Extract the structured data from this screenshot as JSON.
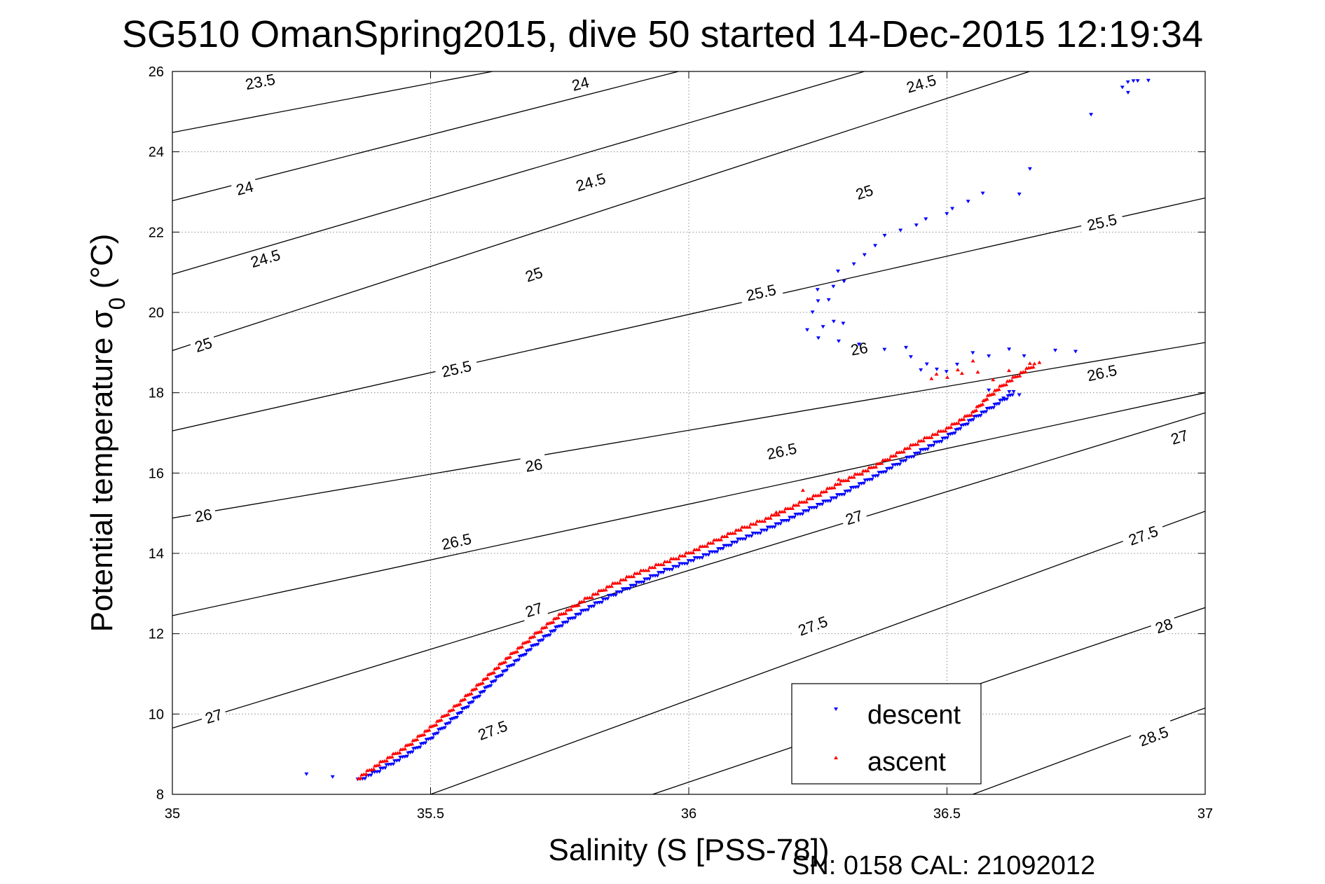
{
  "title": "SG510 OmanSpring2015, dive 50 started 14-Dec-2015 12:19:34",
  "footer": "SN: 0158  CAL: 21092012",
  "colors": {
    "descent": "#0000ff",
    "ascent": "#ff0000",
    "contour": "#000000",
    "grid": "#8c8c8c"
  },
  "chart_data": {
    "type": "scatter",
    "xlabel": "Salinity (S [PSS-78])",
    "ylabel_prefix": "Potential temperature σ",
    "ylabel_subscript": "0",
    "ylabel_suffix": " (°C)",
    "xlim": [
      35,
      37
    ],
    "ylim": [
      8,
      26
    ],
    "xticks": [
      35,
      35.5,
      36,
      36.5,
      37
    ],
    "xtick_labels": [
      "35",
      "35.5",
      "36",
      "36.5",
      "37"
    ],
    "yticks": [
      8,
      10,
      12,
      14,
      16,
      18,
      20,
      22,
      24,
      26
    ],
    "ytick_labels": [
      "8",
      "10",
      "12",
      "14",
      "16",
      "18",
      "20",
      "22",
      "24",
      "26"
    ],
    "grid": true,
    "legend_position": "bottom-right",
    "contours": [
      {
        "level": "23.5",
        "line": [
          [
            35,
            24.48
          ],
          [
            35.62,
            26
          ]
        ],
        "labels": [
          [
            35.17,
            25.75
          ]
        ]
      },
      {
        "level": "24",
        "line": [
          [
            35,
            22.78
          ],
          [
            35.98,
            26
          ]
        ],
        "labels": [
          [
            35.14,
            23.1
          ],
          [
            35.79,
            25.7
          ]
        ]
      },
      {
        "level": "24.5",
        "line": [
          [
            35,
            20.95
          ],
          [
            36.34,
            26
          ]
        ],
        "labels": [
          [
            35.18,
            21.35
          ],
          [
            35.81,
            23.25
          ],
          [
            36.45,
            25.7
          ]
        ]
      },
      {
        "level": "25",
        "line": [
          [
            35,
            19.05
          ],
          [
            36.66,
            26
          ]
        ],
        "labels": [
          [
            35.06,
            19.2
          ],
          [
            35.7,
            20.95
          ],
          [
            36.34,
            23.0
          ]
        ]
      },
      {
        "level": "25.5",
        "line": [
          [
            35,
            17.05
          ],
          [
            37,
            22.85
          ]
        ],
        "labels": [
          [
            35.55,
            18.6
          ],
          [
            36.14,
            20.5
          ],
          [
            36.8,
            22.25
          ]
        ]
      },
      {
        "level": "26",
        "line": [
          [
            35,
            14.88
          ],
          [
            37,
            19.25
          ]
        ],
        "labels": [
          [
            35.06,
            14.95
          ],
          [
            35.7,
            16.2
          ],
          [
            36.33,
            19.1
          ]
        ]
      },
      {
        "level": "26.5",
        "line": [
          [
            35,
            12.45
          ],
          [
            37,
            18.0
          ]
        ],
        "labels": [
          [
            35.55,
            14.3
          ],
          [
            36.18,
            16.55
          ],
          [
            36.8,
            18.5
          ]
        ]
      },
      {
        "level": "27",
        "line": [
          [
            35,
            9.65
          ],
          [
            37,
            17.5
          ]
        ],
        "labels": [
          [
            35.08,
            9.95
          ],
          [
            35.7,
            12.6
          ],
          [
            36.32,
            14.9
          ],
          [
            36.95,
            16.9
          ]
        ]
      },
      {
        "level": "27.5",
        "line": [
          [
            35.5,
            8
          ],
          [
            37,
            15.05
          ]
        ],
        "labels": [
          [
            35.62,
            9.6
          ],
          [
            36.24,
            12.2
          ],
          [
            36.88,
            14.45
          ]
        ]
      },
      {
        "level": "28",
        "line": [
          [
            35.93,
            8
          ],
          [
            37,
            12.65
          ]
        ],
        "labels": [
          [
            36.92,
            12.2
          ]
        ]
      },
      {
        "level": "28.5",
        "line": [
          [
            36.55,
            8
          ],
          [
            37,
            10.15
          ]
        ],
        "labels": [
          [
            36.9,
            9.45
          ]
        ]
      }
    ],
    "series": [
      {
        "name": "descent",
        "marker": "triangle-down",
        "path": [
          [
            35.36,
            8.35
          ],
          [
            35.4,
            8.6
          ],
          [
            35.45,
            8.95
          ],
          [
            35.5,
            9.4
          ],
          [
            35.55,
            9.95
          ],
          [
            35.6,
            10.55
          ],
          [
            35.65,
            11.15
          ],
          [
            35.7,
            11.7
          ],
          [
            35.75,
            12.2
          ],
          [
            35.8,
            12.6
          ],
          [
            35.85,
            12.95
          ],
          [
            35.9,
            13.25
          ],
          [
            35.95,
            13.55
          ],
          [
            36.0,
            13.8
          ],
          [
            36.05,
            14.05
          ],
          [
            36.1,
            14.35
          ],
          [
            36.15,
            14.6
          ],
          [
            36.2,
            14.9
          ],
          [
            36.25,
            15.2
          ],
          [
            36.3,
            15.5
          ],
          [
            36.35,
            15.85
          ],
          [
            36.4,
            16.2
          ],
          [
            36.45,
            16.55
          ],
          [
            36.5,
            16.9
          ],
          [
            36.55,
            17.35
          ],
          [
            36.6,
            17.75
          ],
          [
            36.63,
            18.0
          ]
        ],
        "points": [
          [
            35.26,
            8.5
          ],
          [
            35.31,
            8.45
          ],
          [
            36.58,
            18.1
          ],
          [
            36.61,
            17.85
          ],
          [
            36.64,
            17.95
          ],
          [
            36.62,
            18.05
          ],
          [
            36.5,
            18.5
          ],
          [
            36.52,
            18.7
          ],
          [
            36.48,
            18.6
          ],
          [
            36.46,
            18.75
          ],
          [
            36.45,
            18.55
          ],
          [
            36.43,
            18.9
          ],
          [
            36.42,
            19.15
          ],
          [
            36.38,
            19.05
          ],
          [
            36.33,
            19.2
          ],
          [
            36.29,
            19.3
          ],
          [
            36.25,
            19.4
          ],
          [
            36.23,
            19.55
          ],
          [
            36.26,
            19.65
          ],
          [
            36.28,
            19.8
          ],
          [
            36.3,
            19.7
          ],
          [
            36.24,
            20.0
          ],
          [
            36.25,
            20.3
          ],
          [
            36.27,
            20.35
          ],
          [
            36.25,
            20.55
          ],
          [
            36.28,
            20.65
          ],
          [
            36.3,
            20.8
          ],
          [
            36.29,
            21.0
          ],
          [
            36.32,
            21.2
          ],
          [
            36.34,
            21.45
          ],
          [
            36.36,
            21.7
          ],
          [
            36.38,
            21.9
          ],
          [
            36.41,
            22.05
          ],
          [
            36.44,
            22.2
          ],
          [
            36.46,
            22.3
          ],
          [
            36.5,
            22.45
          ],
          [
            36.51,
            22.6
          ],
          [
            36.54,
            22.8
          ],
          [
            36.57,
            22.95
          ],
          [
            36.64,
            22.95
          ],
          [
            36.66,
            23.6
          ],
          [
            36.78,
            24.9
          ],
          [
            36.84,
            25.6
          ],
          [
            36.85,
            25.75
          ],
          [
            36.86,
            25.8
          ],
          [
            36.87,
            25.75
          ],
          [
            36.89,
            25.78
          ],
          [
            36.85,
            25.5
          ],
          [
            36.75,
            19.0
          ],
          [
            36.71,
            19.05
          ],
          [
            36.62,
            19.1
          ],
          [
            36.58,
            18.95
          ],
          [
            36.65,
            18.9
          ],
          [
            36.55,
            19.0
          ]
        ]
      },
      {
        "name": "ascent",
        "marker": "triangle-up",
        "path": [
          [
            35.36,
            8.4
          ],
          [
            35.4,
            8.75
          ],
          [
            35.45,
            9.15
          ],
          [
            35.5,
            9.65
          ],
          [
            35.55,
            10.2
          ],
          [
            35.6,
            10.8
          ],
          [
            35.65,
            11.4
          ],
          [
            35.7,
            11.95
          ],
          [
            35.75,
            12.45
          ],
          [
            35.8,
            12.85
          ],
          [
            35.85,
            13.2
          ],
          [
            35.9,
            13.5
          ],
          [
            35.95,
            13.75
          ],
          [
            36.0,
            14.0
          ],
          [
            36.05,
            14.3
          ],
          [
            36.1,
            14.6
          ],
          [
            36.15,
            14.85
          ],
          [
            36.2,
            15.15
          ],
          [
            36.25,
            15.45
          ],
          [
            36.3,
            15.8
          ],
          [
            36.35,
            16.1
          ],
          [
            36.4,
            16.45
          ],
          [
            36.45,
            16.8
          ],
          [
            36.5,
            17.1
          ],
          [
            36.55,
            17.5
          ],
          [
            36.58,
            17.9
          ],
          [
            36.61,
            18.2
          ],
          [
            36.64,
            18.45
          ],
          [
            36.67,
            18.7
          ]
        ],
        "points": [
          [
            36.47,
            18.35
          ],
          [
            36.5,
            18.4
          ],
          [
            36.53,
            18.45
          ],
          [
            36.56,
            18.5
          ],
          [
            36.55,
            18.8
          ],
          [
            36.52,
            18.6
          ],
          [
            36.59,
            18.3
          ],
          [
            36.62,
            18.55
          ],
          [
            36.66,
            18.75
          ],
          [
            36.68,
            18.72
          ],
          [
            36.48,
            18.45
          ],
          [
            36.29,
            15.85
          ],
          [
            36.22,
            15.6
          ],
          [
            36.17,
            15.0
          ]
        ]
      }
    ]
  }
}
